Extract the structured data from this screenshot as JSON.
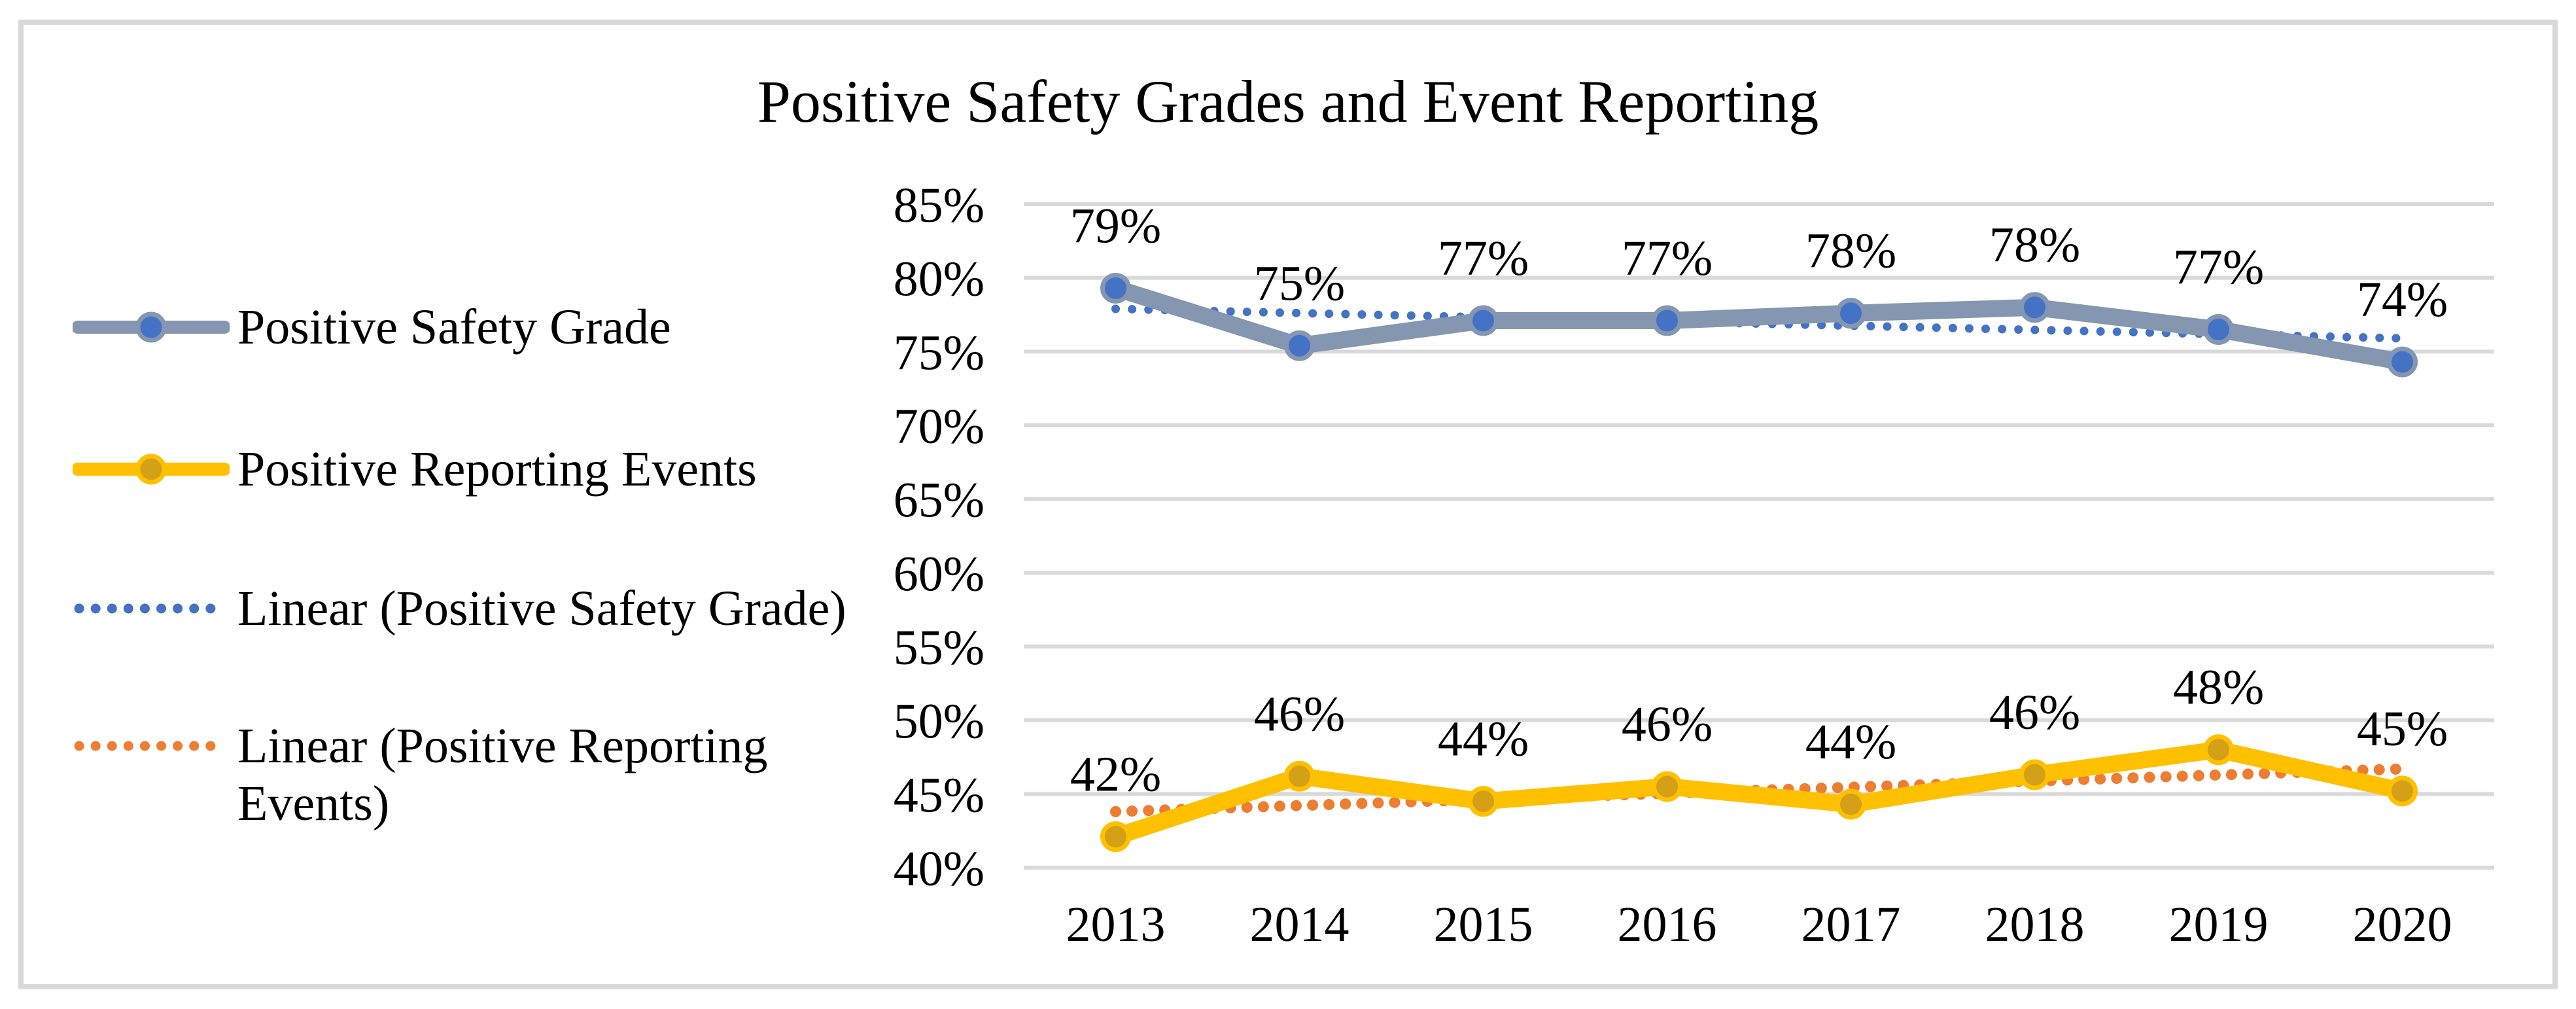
{
  "chart_data": {
    "type": "line",
    "title": "Positive Safety Grades and Event Reporting",
    "categories": [
      "2013",
      "2014",
      "2015",
      "2016",
      "2017",
      "2018",
      "2019",
      "2020"
    ],
    "series": [
      {
        "name": "Positive Safety Grade",
        "labels": [
          "79%",
          "75%",
          "77%",
          "77%",
          "78%",
          "78%",
          "77%",
          "74%"
        ],
        "values": [
          79,
          75,
          77,
          77,
          78,
          78,
          77,
          74
        ],
        "plot_values": [
          79.3,
          75.4,
          77.1,
          77.1,
          77.6,
          78.0,
          76.5,
          74.3
        ],
        "line_color": "#8496B0",
        "marker_color": "#4472C4"
      },
      {
        "name": "Positive Reporting Events",
        "labels": [
          "42%",
          "46%",
          "44%",
          "46%",
          "44%",
          "46%",
          "48%",
          "45%"
        ],
        "values": [
          42,
          46,
          44,
          46,
          44,
          46,
          48,
          45
        ],
        "plot_values": [
          42.1,
          46.2,
          44.5,
          45.5,
          44.3,
          46.3,
          48.0,
          45.2
        ],
        "line_color": "#FFC000",
        "marker_color": "#D4A017"
      }
    ],
    "trendlines": [
      {
        "name": "Linear (Positive Safety Grade)",
        "color": "#4472C4",
        "style": "dotted",
        "start_value": 77.9,
        "end_value": 75.9
      },
      {
        "name": "Linear (Positive Reporting Events)",
        "color": "#ED7D31",
        "style": "dotted",
        "start_value": 43.8,
        "end_value": 46.7
      }
    ],
    "y_axis": {
      "tick_labels": [
        "85%",
        "80%",
        "75%",
        "70%",
        "65%",
        "60%",
        "55%",
        "50%",
        "45%",
        "40%"
      ],
      "min": 40,
      "max": 85,
      "step": 5,
      "format": "percent"
    },
    "x_axis": {
      "tick_labels": [
        "2013",
        "2014",
        "2015",
        "2016",
        "2017",
        "2018",
        "2019",
        "2020"
      ]
    },
    "grid": true,
    "legend_position": "left",
    "colors": {
      "gridline": "#D9D9D9",
      "border": "#D9D9D9",
      "text": "#000000",
      "background": "#FFFFFF"
    }
  },
  "legend": {
    "items": [
      {
        "label": "Positive Safety Grade",
        "sample": "solid-line-marker",
        "line_color": "#8496B0",
        "marker_color": "#4472C4"
      },
      {
        "label": "Positive Reporting Events",
        "sample": "solid-line-marker",
        "line_color": "#FFC000",
        "marker_color": "#D4A017"
      },
      {
        "label": "Linear (Positive Safety Grade)",
        "sample": "dotted-line",
        "line_color": "#4472C4"
      },
      {
        "label": "Linear (Positive Reporting Events)",
        "sample": "dotted-line",
        "line_color": "#ED7D31"
      }
    ]
  }
}
